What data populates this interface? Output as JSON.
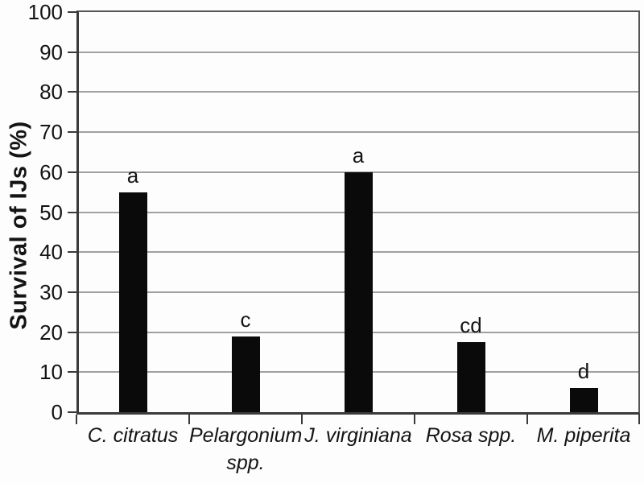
{
  "chart_data": {
    "type": "bar",
    "title": "",
    "ylabel": "Survival of IJs (%)",
    "xlabel": "",
    "ylim": [
      0,
      100
    ],
    "ytick_step": 10,
    "yticks": [
      "0",
      "10",
      "20",
      "30",
      "40",
      "50",
      "60",
      "70",
      "80",
      "90",
      "100"
    ],
    "grid": "horizontal gridlines every 10 units",
    "legend": "none",
    "categories": [
      "C. citratus",
      "Pelargonium spp.",
      "J. virginiana",
      "Rosa spp.",
      "M. piperita"
    ],
    "values": [
      55,
      19,
      60,
      17.5,
      6
    ],
    "significance_letters": [
      "a",
      "c",
      "a",
      "cd",
      "d"
    ],
    "colors": {
      "bar": "#0a0a0a",
      "gridline": "#a0a0a0",
      "axis": "#3a3a3a",
      "frame": "#565656",
      "text": "#141414",
      "background": "#fdfdfd"
    }
  }
}
